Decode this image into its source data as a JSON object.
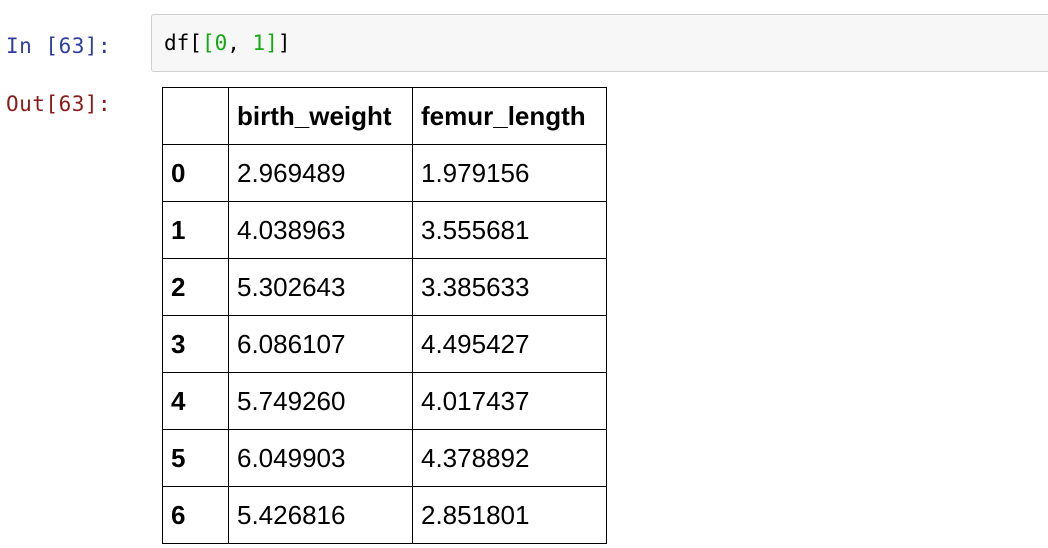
{
  "notebook": {
    "in_prompt": "In [63]:",
    "out_prompt": "Out[63]:",
    "code": {
      "prefix": "df[",
      "inner_open": "[",
      "arg1": "0",
      "sep": ", ",
      "arg2": "1",
      "inner_close": "]",
      "suffix": "]"
    },
    "colors": {
      "in_prompt": "#303f9f",
      "out_prompt": "#8b1a1a",
      "code_number": "#11aa11",
      "input_background": "#f7f7f7"
    }
  },
  "dataframe": {
    "index_header": "",
    "columns": [
      "birth_weight",
      "femur_length"
    ],
    "rows": [
      {
        "index": "0",
        "values": [
          "2.969489",
          "1.979156"
        ]
      },
      {
        "index": "1",
        "values": [
          "4.038963",
          "3.555681"
        ]
      },
      {
        "index": "2",
        "values": [
          "5.302643",
          "3.385633"
        ]
      },
      {
        "index": "3",
        "values": [
          "6.086107",
          "4.495427"
        ]
      },
      {
        "index": "4",
        "values": [
          "5.749260",
          "4.017437"
        ]
      },
      {
        "index": "5",
        "values": [
          "6.049903",
          "4.378892"
        ]
      },
      {
        "index": "6",
        "values": [
          "5.426816",
          "2.851801"
        ]
      }
    ]
  }
}
